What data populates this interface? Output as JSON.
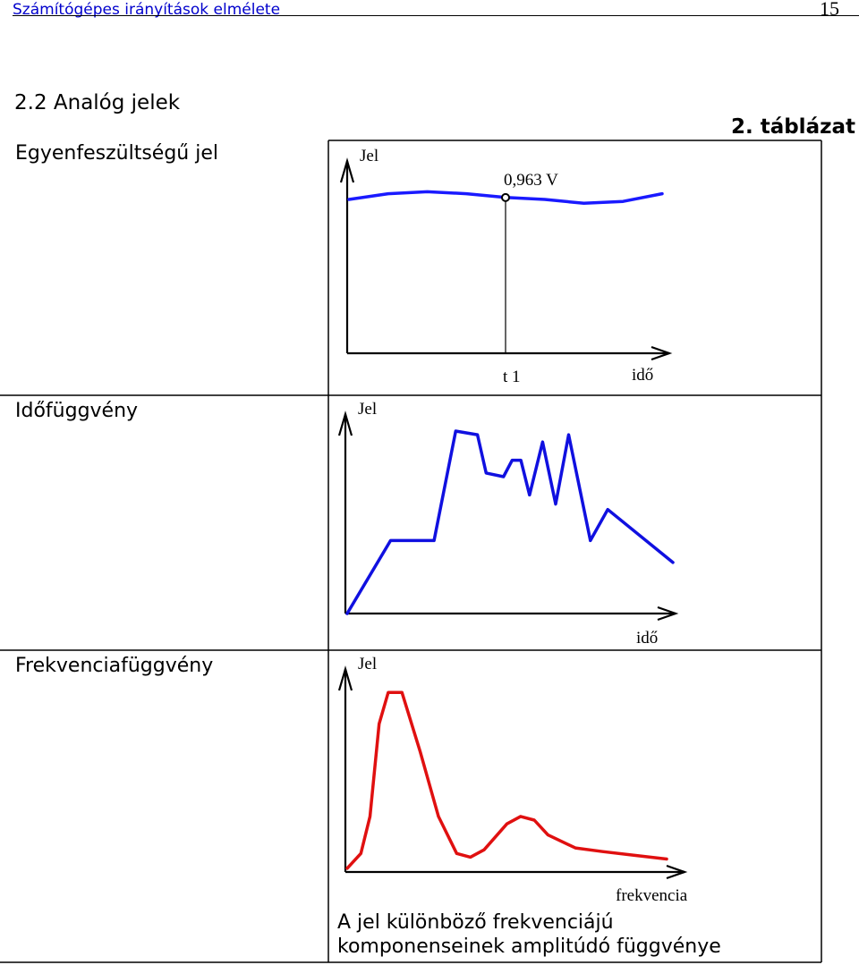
{
  "header": {
    "title": "Számítógépes irányítások elmélete",
    "page_number": "15"
  },
  "section_title": "2.2  Analóg jelek",
  "table_caption": "2. táblázat",
  "rows": [
    {
      "label": "Egyenfeszültségű jel"
    },
    {
      "label": "Időfüggvény"
    },
    {
      "label": "Frekvenciafüggvény"
    }
  ],
  "chart_data": [
    {
      "type": "line",
      "ylabel": "Jel",
      "xlabel": "idő",
      "point_label": "0,963 V",
      "tick_label": "t 1",
      "series": [
        {
          "color": "#1a1aff",
          "points": [
            [
              0,
              0.8
            ],
            [
              1,
              0.83
            ],
            [
              2,
              0.84
            ],
            [
              3,
              0.83
            ],
            [
              4,
              0.81
            ],
            [
              5,
              0.8
            ],
            [
              6,
              0.78
            ],
            [
              7,
              0.79
            ],
            [
              8,
              0.83
            ]
          ]
        }
      ]
    },
    {
      "type": "line",
      "ylabel": "Jel",
      "xlabel": "idő",
      "series": [
        {
          "color": "#1010e0",
          "points": [
            [
              0,
              0.0
            ],
            [
              1,
              0.4
            ],
            [
              2,
              0.4
            ],
            [
              2.5,
              1.0
            ],
            [
              3,
              0.98
            ],
            [
              3.2,
              0.77
            ],
            [
              3.6,
              0.75
            ],
            [
              3.8,
              0.84
            ],
            [
              4,
              0.84
            ],
            [
              4.2,
              0.65
            ],
            [
              4.5,
              0.94
            ],
            [
              4.8,
              0.6
            ],
            [
              5.1,
              0.98
            ],
            [
              5.6,
              0.4
            ],
            [
              6.0,
              0.57
            ],
            [
              7.5,
              0.28
            ]
          ]
        }
      ]
    },
    {
      "type": "line",
      "ylabel": "Jel",
      "xlabel": "frekvencia",
      "caption": [
        "A jel különböző frekvenciájú",
        "komponenseinek amplitúdó függvénye"
      ],
      "series": [
        {
          "color": "#e01010",
          "points": [
            [
              0,
              0.02
            ],
            [
              0.3,
              0.1
            ],
            [
              0.5,
              0.3
            ],
            [
              0.7,
              0.8
            ],
            [
              0.9,
              0.97
            ],
            [
              1.2,
              0.97
            ],
            [
              1.6,
              0.65
            ],
            [
              2.0,
              0.3
            ],
            [
              2.4,
              0.1
            ],
            [
              2.7,
              0.08
            ],
            [
              3.0,
              0.12
            ],
            [
              3.5,
              0.26
            ],
            [
              3.8,
              0.3
            ],
            [
              4.1,
              0.28
            ],
            [
              4.4,
              0.2
            ],
            [
              5.0,
              0.13
            ],
            [
              5.6,
              0.11
            ],
            [
              6.3,
              0.09
            ],
            [
              7.0,
              0.07
            ]
          ]
        }
      ]
    }
  ]
}
